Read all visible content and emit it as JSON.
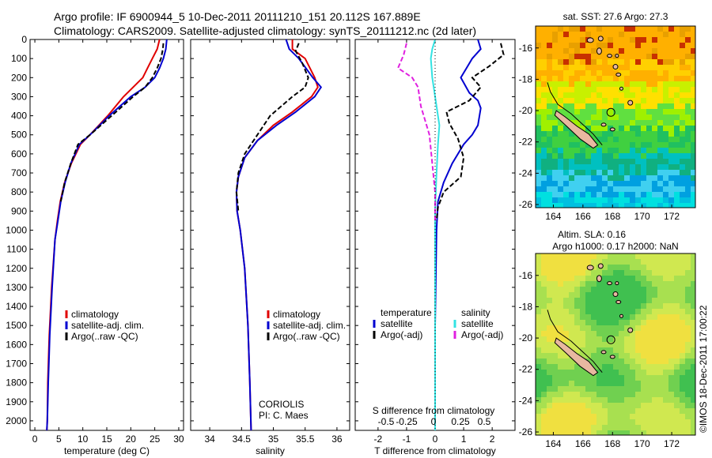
{
  "header": {
    "line1": "Argo profile: IF 6900944_5 10-Dec-2011 20111210_151 20.112S 167.889E",
    "line2": "Climatology: CARS2009. Satellite-adjusted climatology: synTS_20111212.nc (2d later)"
  },
  "side_text": "©IMOS 18-Dec-2011 17:00:22",
  "colors": {
    "climatology": "#e00000",
    "satellite": "#0000d0",
    "argo": "#000000",
    "cyan": "#33e3e3",
    "magenta": "#e020e0",
    "land": "#e8b8a0"
  },
  "chart_data": [
    {
      "id": "temperature",
      "type": "line",
      "xlabel": "temperature (deg C)",
      "ylabel": "",
      "xlim": [
        -1,
        31
      ],
      "xticks": [
        0,
        5,
        10,
        15,
        20,
        25,
        30
      ],
      "ylim": [
        2050,
        0
      ],
      "yticks": [
        0,
        100,
        200,
        300,
        400,
        500,
        600,
        700,
        800,
        900,
        1000,
        1100,
        1200,
        1300,
        1400,
        1500,
        1600,
        1700,
        1800,
        1900,
        2000
      ],
      "legend": [
        "climatology",
        "satellite-adj. clim.",
        "Argo(..raw -QC)"
      ],
      "series": [
        {
          "name": "climatology",
          "color": "red",
          "x": [
            26,
            25.5,
            24.5,
            23.5,
            22.5,
            20.5,
            18.5,
            15.2,
            11.5,
            9.5,
            7.6,
            6.2,
            5.3,
            4.7,
            4.2,
            3.5,
            3.0,
            2.7,
            2.6,
            2.5
          ],
          "y": [
            0,
            50,
            100,
            150,
            200,
            250,
            300,
            400,
            500,
            550,
            650,
            750,
            850,
            950,
            1050,
            1300,
            1550,
            1800,
            2000,
            2050
          ]
        },
        {
          "name": "satellite-adj. clim.",
          "color": "blue",
          "x": [
            27.5,
            27.3,
            26.8,
            26.0,
            25.0,
            23.0,
            20.0,
            15.5,
            11.5,
            9.3,
            7.5,
            6.3,
            5.4,
            4.8,
            4.2,
            3.6,
            3.1,
            2.8,
            2.6,
            2.5
          ],
          "y": [
            0,
            50,
            100,
            150,
            200,
            250,
            300,
            400,
            500,
            550,
            650,
            750,
            850,
            950,
            1050,
            1300,
            1550,
            1800,
            2000,
            2050
          ]
        },
        {
          "name": "Argo(..raw -QC)",
          "color": "black",
          "x": [
            26.8,
            26.7,
            26.3,
            25.5,
            24.5,
            23.0,
            20.5,
            16.0,
            11.5,
            9.0,
            7.5,
            6.2,
            5.4
          ],
          "y": [
            20,
            50,
            100,
            150,
            200,
            250,
            300,
            400,
            500,
            550,
            650,
            750,
            850
          ]
        }
      ]
    },
    {
      "id": "salinity",
      "type": "line",
      "xlabel": "salinity",
      "xlim": [
        33.7,
        36.2
      ],
      "xticks": [
        34,
        34.5,
        35,
        35.5,
        36
      ],
      "ylim": [
        2050,
        0
      ],
      "legend": [
        "climatology",
        "satellite-adj. clim.",
        "Argo(..raw -QC)"
      ],
      "annotation": [
        "CORIOLIS",
        "PI: C. Maes"
      ],
      "series": [
        {
          "name": "climatology",
          "color": "red",
          "x": [
            35.3,
            35.3,
            35.5,
            35.65,
            35.7,
            35.6,
            35.3,
            35.0,
            34.75,
            34.55,
            34.45,
            34.42,
            34.43,
            34.48,
            34.55,
            34.6,
            34.63,
            34.65
          ],
          "y": [
            0,
            50,
            100,
            200,
            250,
            300,
            380,
            450,
            530,
            620,
            720,
            800,
            900,
            1000,
            1200,
            1500,
            1800,
            2050
          ]
        },
        {
          "name": "satellite-adj. clim.",
          "color": "blue",
          "x": [
            35.2,
            35.25,
            35.4,
            35.62,
            35.75,
            35.65,
            35.35,
            35.05,
            34.75,
            34.55,
            34.45,
            34.42,
            34.43,
            34.48,
            34.55,
            34.6,
            34.63,
            34.65
          ],
          "y": [
            0,
            50,
            100,
            200,
            250,
            300,
            380,
            450,
            530,
            620,
            720,
            800,
            900,
            1000,
            1200,
            1500,
            1800,
            2050
          ]
        },
        {
          "name": "Argo(..raw -QC)",
          "color": "black",
          "x": [
            35.4,
            35.35,
            35.45,
            35.55,
            35.5,
            35.3,
            34.95,
            34.75,
            34.55,
            34.45,
            34.42,
            34.45
          ],
          "y": [
            20,
            60,
            120,
            200,
            250,
            300,
            400,
            500,
            600,
            700,
            800,
            900
          ]
        }
      ]
    },
    {
      "id": "differences",
      "type": "line",
      "xlabel": "T difference from climatology",
      "xlim": [
        -2.8,
        2.8
      ],
      "xticks": [
        -2,
        -1,
        0,
        1,
        2
      ],
      "top_label": "S difference from climatology",
      "s_ticks": [
        "-0.5",
        "-0.25",
        "0",
        "0.25",
        "0.5"
      ],
      "legend": [
        "temperature",
        "satellite",
        "Argo(-adj)",
        "salinity",
        "satellite",
        "Argo(-adj)"
      ],
      "series": [
        {
          "name": "temperature satellite",
          "color": "blue",
          "x": [
            1.5,
            1.6,
            1.3,
            1.1,
            0.9,
            1.2,
            1.5,
            1.6,
            1.5,
            1.3,
            1.0,
            0.6,
            0.3,
            0.1,
            0.05,
            0.0,
            0.0
          ],
          "y": [
            0,
            50,
            100,
            150,
            200,
            280,
            320,
            360,
            450,
            500,
            550,
            650,
            750,
            850,
            1000,
            1500,
            2050
          ]
        },
        {
          "name": "temperature Argo(-adj)",
          "color": "black",
          "x": [
            2.3,
            2.4,
            1.9,
            1.3,
            1.6,
            1.2,
            0.4,
            0.5,
            0.8,
            1.0,
            0.9,
            0.3,
            0.1,
            0.05
          ],
          "y": [
            20,
            80,
            140,
            200,
            250,
            320,
            380,
            440,
            520,
            620,
            720,
            800,
            880,
            950
          ]
        },
        {
          "name": "salinity satellite",
          "color": "cyan",
          "x": [
            0.0,
            -0.1,
            -0.15,
            -0.1,
            0.0,
            0.1,
            0.15,
            0.1,
            0.05,
            0.0,
            0.0,
            0.0
          ],
          "y": [
            0,
            50,
            100,
            200,
            300,
            400,
            450,
            550,
            700,
            900,
            1400,
            2050
          ]
        },
        {
          "name": "salinity Argo(-adj)",
          "color": "magenta",
          "x": [
            -1.0,
            -1.1,
            -1.3,
            -0.8,
            -0.6,
            -0.5,
            -0.2,
            -0.1,
            0.0,
            0.0
          ],
          "y": [
            20,
            80,
            150,
            200,
            250,
            350,
            500,
            650,
            800,
            950
          ]
        }
      ]
    },
    {
      "id": "sst_map",
      "type": "heatmap",
      "title": "sat. SST: 27.6 Argo: 27.3",
      "xticks": [
        164,
        166,
        168,
        170,
        172
      ],
      "yticks": [
        -16,
        -18,
        -20,
        -22,
        -24,
        -26
      ]
    },
    {
      "id": "sla_map",
      "type": "heatmap",
      "title1": "Altim. SLA: 0.16",
      "title2": "Argo h1000: 0.17 h2000: NaN",
      "xticks": [
        164,
        166,
        168,
        170,
        172
      ],
      "yticks": [
        -16,
        -18,
        -20,
        -22,
        -24,
        -26
      ]
    }
  ]
}
